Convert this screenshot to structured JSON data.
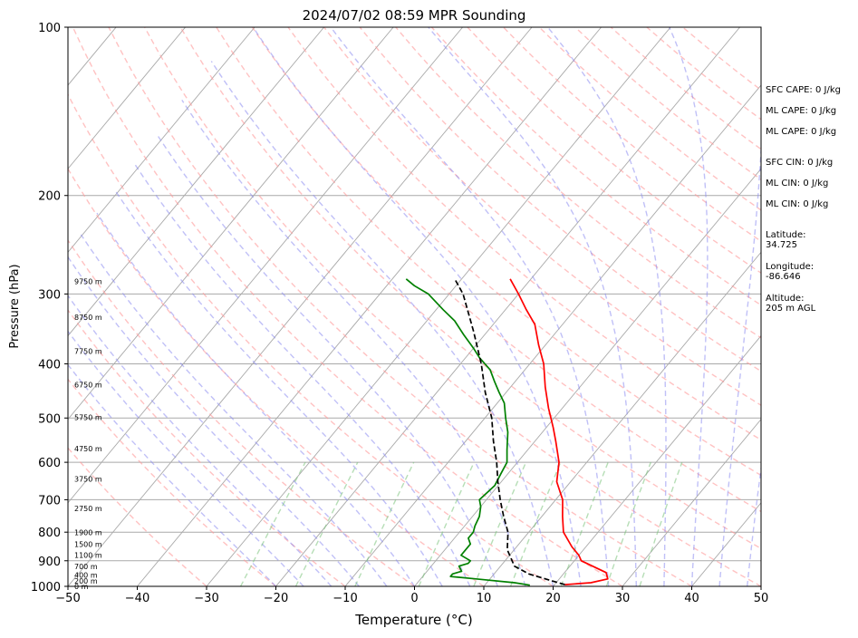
{
  "chart_data": {
    "type": "line",
    "title": "2024/07/02 08:59 MPR Sounding",
    "xlabel": "Temperature (°C)",
    "ylabel": "Pressure (hPa)",
    "xlim": [
      -50,
      50
    ],
    "ylim": [
      1000,
      100
    ],
    "y_scale": "log",
    "x_ticks": [
      "−50",
      "−40",
      "−30",
      "−20",
      "−10",
      "0",
      "10",
      "20",
      "30",
      "40",
      "50"
    ],
    "x_tick_values": [
      -50,
      -40,
      -30,
      -20,
      -10,
      0,
      10,
      20,
      30,
      40,
      50
    ],
    "y_ticks": [
      1000,
      900,
      800,
      700,
      600,
      500,
      400,
      300,
      200,
      100
    ],
    "height_labels": [
      {
        "label": "0 m",
        "p": 1000
      },
      {
        "label": "200 m",
        "p": 977
      },
      {
        "label": "400 m",
        "p": 955
      },
      {
        "label": "700 m",
        "p": 922
      },
      {
        "label": "1100 m",
        "p": 880
      },
      {
        "label": "1500 m",
        "p": 840
      },
      {
        "label": "1900 m",
        "p": 801
      },
      {
        "label": "2750 m",
        "p": 725
      },
      {
        "label": "3750 m",
        "p": 643
      },
      {
        "label": "4750 m",
        "p": 567
      },
      {
        "label": "5750 m",
        "p": 499
      },
      {
        "label": "6750 m",
        "p": 436
      },
      {
        "label": "7750 m",
        "p": 380
      },
      {
        "label": "8750 m",
        "p": 330
      },
      {
        "label": "9750 m",
        "p": 285
      }
    ],
    "series": [
      {
        "key": "temperature",
        "color": "#ff0000",
        "points": [
          [
            21.5,
            993
          ],
          [
            25,
            985
          ],
          [
            27,
            970
          ],
          [
            26,
            945
          ],
          [
            21,
            900
          ],
          [
            20,
            880
          ],
          [
            18,
            850
          ],
          [
            15,
            800
          ],
          [
            13,
            750
          ],
          [
            11,
            700
          ],
          [
            8,
            650
          ],
          [
            6,
            600
          ],
          [
            3,
            550
          ],
          [
            1,
            520
          ],
          [
            -2,
            480
          ],
          [
            -5,
            440
          ],
          [
            -8,
            400
          ],
          [
            -11,
            370
          ],
          [
            -14,
            340
          ],
          [
            -17,
            320
          ],
          [
            -20,
            300
          ],
          [
            -23,
            282
          ]
        ]
      },
      {
        "key": "dewpoint",
        "color": "#008000",
        "points": [
          [
            16.5,
            995
          ],
          [
            14,
            985
          ],
          [
            8,
            970
          ],
          [
            4,
            960
          ],
          [
            4,
            950
          ],
          [
            5,
            940
          ],
          [
            4,
            920
          ],
          [
            5,
            910
          ],
          [
            5,
            900
          ],
          [
            3,
            880
          ],
          [
            3,
            860
          ],
          [
            3,
            840
          ],
          [
            2,
            820
          ],
          [
            2,
            800
          ],
          [
            1.5,
            780
          ],
          [
            1,
            750
          ],
          [
            0,
            720
          ],
          [
            -1,
            700
          ],
          [
            -0.5,
            660
          ],
          [
            -1,
            630
          ],
          [
            -1.5,
            600
          ],
          [
            -3,
            570
          ],
          [
            -5,
            530
          ],
          [
            -7,
            500
          ],
          [
            -9,
            470
          ],
          [
            -11,
            450
          ],
          [
            -13,
            430
          ],
          [
            -15,
            410
          ],
          [
            -18,
            390
          ],
          [
            -20,
            375
          ],
          [
            -23,
            355
          ],
          [
            -26,
            335
          ],
          [
            -29,
            320
          ],
          [
            -33,
            300
          ],
          [
            -36,
            290
          ],
          [
            -38,
            282
          ]
        ]
      },
      {
        "key": "parcel",
        "color": "#000000",
        "dashed": true,
        "points": [
          [
            21.5,
            993
          ],
          [
            18,
            970
          ],
          [
            15,
            950
          ],
          [
            12,
            920
          ],
          [
            9,
            860
          ],
          [
            7,
            800
          ],
          [
            4.5,
            750
          ],
          [
            2,
            700
          ],
          [
            -0.5,
            650
          ],
          [
            -3,
            600
          ],
          [
            -6,
            550
          ],
          [
            -9,
            500
          ],
          [
            -13,
            450
          ],
          [
            -17,
            400
          ],
          [
            -22,
            350
          ],
          [
            -28,
            300
          ],
          [
            -31,
            282
          ]
        ]
      }
    ]
  },
  "annotations": [
    {
      "text": "SFC CAPE: 0 J/kg",
      "offset": 0
    },
    {
      "text": "ML CAPE: 0 J/kg",
      "offset": 23
    },
    {
      "text": "ML CAPE: 0 J/kg",
      "offset": 46
    },
    {
      "text": "SFC CIN: 0 J/kg",
      "offset": 80
    },
    {
      "text": "ML CIN: 0 J/kg",
      "offset": 103
    },
    {
      "text": "ML CIN: 0 J/kg",
      "offset": 126
    },
    {
      "text": "Latitude:",
      "offset": 160
    },
    {
      "text": "34.725",
      "offset": 171
    },
    {
      "text": "Longitude:",
      "offset": 195
    },
    {
      "text": "-86.646",
      "offset": 206
    },
    {
      "text": "Altitude:",
      "offset": 230
    },
    {
      "text": "205 m AGL",
      "offset": 241
    }
  ]
}
